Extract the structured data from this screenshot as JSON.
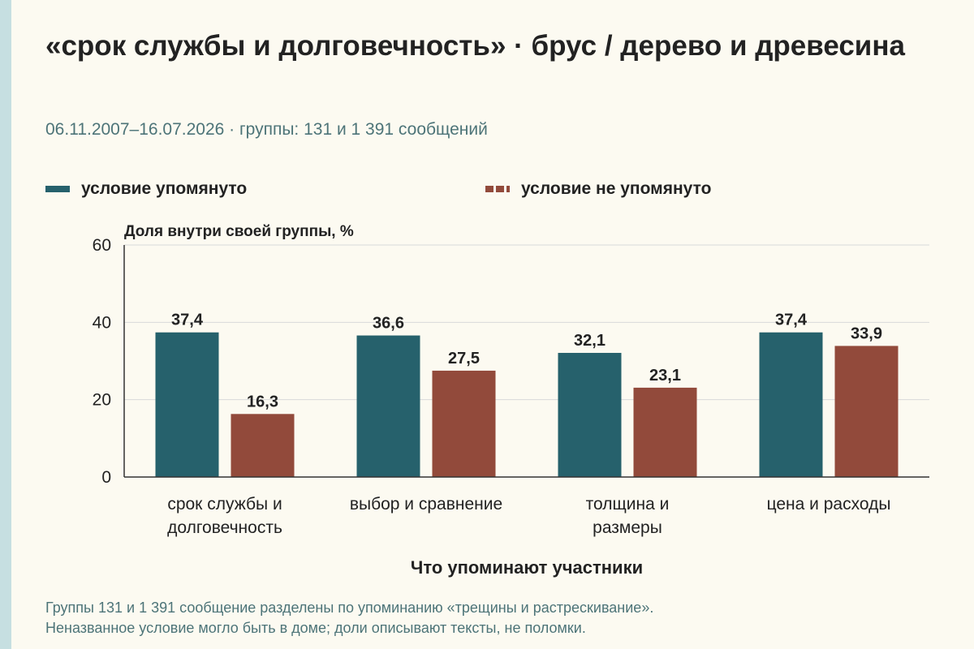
{
  "colors": {
    "mentioned": "#26616c",
    "not_mentioned": "#924a3b",
    "grid": "#d9d9d9",
    "axis": "#333333"
  },
  "header": {
    "title": "«срок службы и долговечность» · брус / дерево и древесина",
    "subtitle": "06.11.2007–16.07.2026 · группы: 131 и 1 391 сообщений"
  },
  "legend": {
    "mentioned": "условие упомянуто",
    "not_mentioned": "условие не упомянуто"
  },
  "footnote": {
    "line1": "Группы 131 и 1 391 сообщение разделены по упоминанию «трещины и растрескивание».",
    "line2": "Неназванное условие могло быть в доме; доли описывают тексты, не поломки."
  },
  "chart_data": {
    "type": "bar",
    "ylabel": "Доля внутри своей группы, %",
    "xlabel": "Что упоминают участники",
    "ylim": [
      0,
      60
    ],
    "yticks": [
      0,
      20,
      40,
      60
    ],
    "grid": true,
    "legend_position": "top",
    "categories": [
      [
        "срок службы и",
        "долговечность"
      ],
      [
        "выбор и сравнение"
      ],
      [
        "толщина и",
        "размеры"
      ],
      [
        "цена и расходы"
      ]
    ],
    "series": [
      {
        "name": "условие упомянуто",
        "values": [
          37.4,
          36.6,
          32.1,
          37.4
        ],
        "labels": [
          "37,4",
          "36,6",
          "32,1",
          "37,4"
        ]
      },
      {
        "name": "условие не упомянуто",
        "values": [
          16.3,
          27.5,
          23.1,
          33.9
        ],
        "labels": [
          "16,3",
          "27,5",
          "23,1",
          "33,9"
        ]
      }
    ]
  }
}
